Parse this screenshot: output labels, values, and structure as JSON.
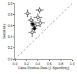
{
  "chart_data": {
    "type": "scatter",
    "xlabel": "False Positive Rate (1-Specificity)",
    "ylabel": "Sensitivity",
    "xlim": [
      0,
      1.0
    ],
    "ylim": [
      0,
      1.0
    ],
    "xticks": [
      {
        "value": 0,
        "label": "0.0"
      },
      0.2,
      0.4,
      0.6,
      0.8,
      {
        "value": 1.0,
        "label": "1.0"
      }
    ],
    "yticks": [
      {
        "value": 0,
        "label": "0.0"
      },
      0.2,
      0.4,
      0.6,
      0.8,
      {
        "value": 1.0,
        "label": "1.0"
      }
    ],
    "grid": false,
    "series": [
      {
        "type": "line",
        "color": "gray",
        "line_style": "dotted",
        "x": [
          0,
          1
        ],
        "values": [
          0,
          1
        ]
      },
      {
        "type": "scatter",
        "marker": "circle_open",
        "color": "black",
        "x": [
          0.22,
          0.28,
          0.3,
          0.35,
          0.4,
          0.43,
          0.44
        ],
        "values": [
          0.82,
          0.7,
          0.48,
          0.6,
          0.75,
          0.88,
          0.65
        ],
        "xerr_minus": [
          0.05,
          0.05,
          0.06,
          0.07,
          0.07,
          0.06,
          0.07
        ],
        "xerr_plus": [
          0.05,
          0.05,
          0.06,
          0.07,
          0.07,
          0.06,
          0.07
        ],
        "yerr_minus": [
          0.06,
          0.06,
          0.07,
          0.07,
          0.06,
          0.05,
          0.07
        ],
        "yerr_plus": [
          0.06,
          0.06,
          0.07,
          0.07,
          0.06,
          0.05,
          0.07
        ]
      },
      {
        "type": "scatter",
        "marker": "square",
        "color": "black",
        "x": [
          0.31,
          0.34
        ],
        "values": [
          0.63,
          0.55
        ],
        "xerr_minus": [
          0.04,
          0.04
        ],
        "xerr_plus": [
          0.04,
          0.04
        ],
        "yerr_minus": [
          0.05,
          0.05
        ],
        "yerr_plus": [
          0.05,
          0.05
        ]
      }
    ]
  }
}
